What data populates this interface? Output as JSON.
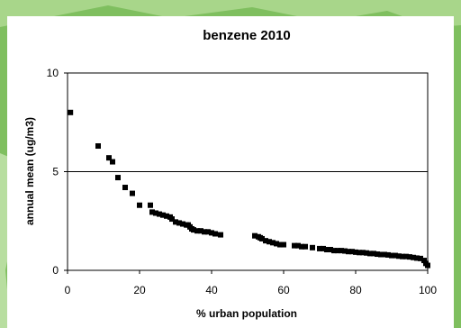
{
  "page": {
    "background_color": "#7fbf5f",
    "card_color": "#ffffff",
    "frame_color": "#000000"
  },
  "chart_data": {
    "type": "scatter",
    "title": "benzene 2010",
    "xlabel": "% urban population",
    "ylabel": "annual mean (ug/m3)",
    "xlim": [
      0,
      100
    ],
    "ylim": [
      0,
      10
    ],
    "x_ticks": [
      "0",
      "20",
      "40",
      "60",
      "80",
      "100"
    ],
    "y_ticks": [
      "0",
      "5",
      "10"
    ],
    "gridlines_y": [
      5,
      10
    ],
    "grid": "horizontal major gridlines",
    "legend": "none",
    "marker": "square",
    "marker_color": "#000000",
    "x": [
      0.8,
      8.5,
      11.5,
      12.5,
      14,
      16,
      18,
      20,
      23,
      23.5,
      24.5,
      25.5,
      26.5,
      27.5,
      28.5,
      29,
      30,
      31,
      32,
      33,
      33.5,
      34,
      34.5,
      35,
      36,
      37,
      38,
      39,
      40,
      41,
      42.5,
      52,
      53,
      53.5,
      54,
      55,
      56,
      57,
      58,
      59,
      60,
      63,
      64,
      65,
      66,
      68,
      70,
      71,
      72,
      73,
      74,
      75,
      76,
      77,
      78,
      79,
      80,
      81,
      82,
      83,
      84,
      85,
      86,
      87,
      88,
      89,
      90,
      91,
      92,
      93,
      94,
      95,
      96,
      97,
      98,
      99,
      99.5,
      100
    ],
    "y": [
      8.0,
      6.3,
      5.7,
      5.5,
      4.7,
      4.2,
      3.9,
      3.3,
      3.3,
      2.95,
      2.9,
      2.85,
      2.8,
      2.75,
      2.7,
      2.6,
      2.45,
      2.4,
      2.35,
      2.3,
      2.3,
      2.2,
      2.1,
      2.05,
      2.0,
      2.0,
      1.95,
      1.95,
      1.9,
      1.85,
      1.8,
      1.75,
      1.7,
      1.65,
      1.6,
      1.5,
      1.45,
      1.4,
      1.35,
      1.3,
      1.3,
      1.25,
      1.25,
      1.2,
      1.2,
      1.15,
      1.1,
      1.1,
      1.05,
      1.05,
      1.0,
      1.0,
      1.0,
      0.98,
      0.95,
      0.95,
      0.92,
      0.9,
      0.9,
      0.88,
      0.85,
      0.85,
      0.82,
      0.8,
      0.8,
      0.78,
      0.75,
      0.75,
      0.72,
      0.7,
      0.7,
      0.68,
      0.65,
      0.62,
      0.6,
      0.5,
      0.35,
      0.25
    ]
  }
}
